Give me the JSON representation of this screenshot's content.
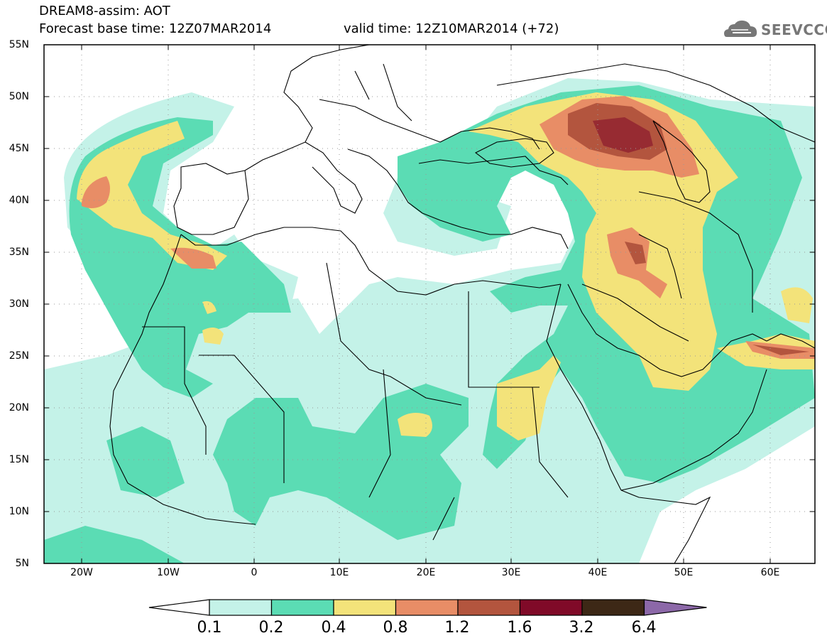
{
  "header": {
    "line1": "DREAM8-assim: AOT",
    "line2": "Forecast base time: 12Z07MAR2014",
    "line3": "valid time: 12Z10MAR2014 (+72)"
  },
  "logo": {
    "text": "SEEVCCC",
    "icon": "cloud-icon"
  },
  "map": {
    "lat_labels": [
      "55N",
      "50N",
      "45N",
      "40N",
      "35N",
      "30N",
      "25N",
      "20N",
      "15N",
      "10N",
      "5N"
    ],
    "lon_labels": [
      "20W",
      "10W",
      "0",
      "10E",
      "20E",
      "30E",
      "40E",
      "50E",
      "60E"
    ],
    "lon_range": [
      -25,
      65
    ],
    "lat_range": [
      5,
      55
    ]
  },
  "legend": {
    "colors": [
      "#ffffff",
      "#c4f2e8",
      "#5bdcb4",
      "#f3e37a",
      "#e88d66",
      "#b3553e",
      "#800a28",
      "#3d2816",
      "#8c68a8"
    ],
    "labels": [
      "0.1",
      "0.2",
      "0.4",
      "0.8",
      "1.2",
      "1.6",
      "3.2",
      "6.4"
    ]
  }
}
